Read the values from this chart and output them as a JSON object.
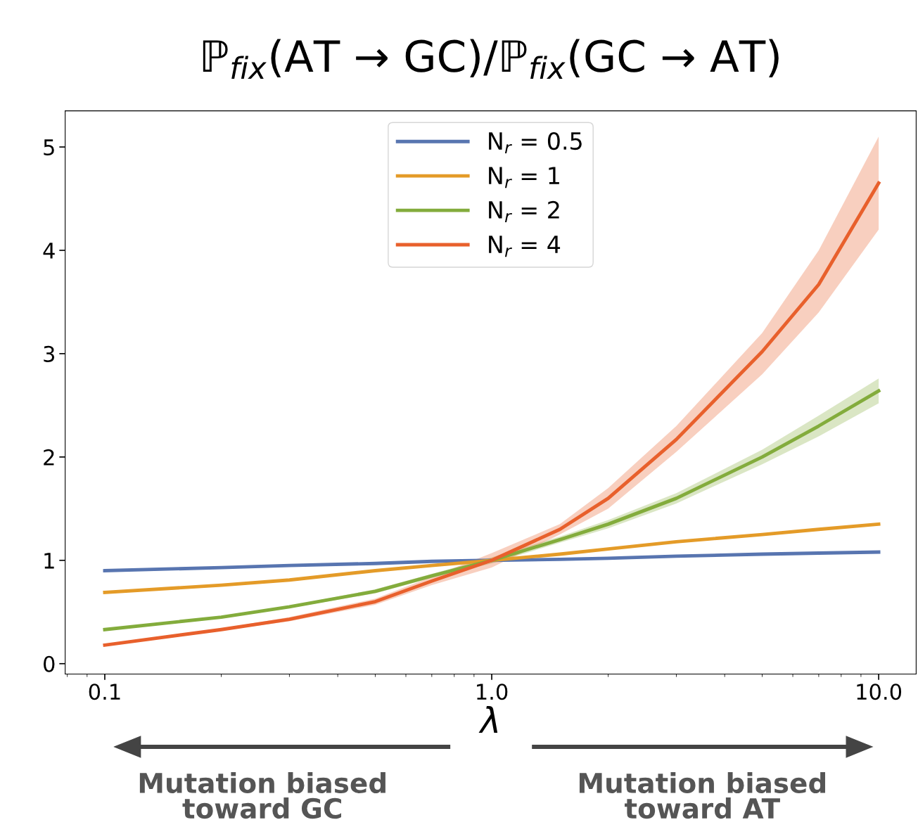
{
  "chart_data": {
    "type": "line",
    "title": "ℙ$_{fix}$(AT → GC)/ℙ$_{fix}$(GC → AT)",
    "xlabel": "λ",
    "x": [
      0.1,
      0.2,
      0.3,
      0.5,
      0.7,
      1,
      1.5,
      2,
      3,
      5,
      7,
      10
    ],
    "series": [
      {
        "name": "N$_{r}$ = 0.5",
        "color": "#5875b0",
        "values": [
          0.9,
          0.93,
          0.95,
          0.97,
          0.99,
          1,
          1.01,
          1.02,
          1.04,
          1.06,
          1.07,
          1.08
        ]
      },
      {
        "name": "N$_{r}$ = 1",
        "color": "#e49b28",
        "values": [
          0.69,
          0.76,
          0.81,
          0.9,
          0.95,
          1,
          1.06,
          1.11,
          1.18,
          1.25,
          1.3,
          1.35
        ]
      },
      {
        "name": "N$_{r}$ = 2",
        "color": "#83ac3c",
        "values": [
          0.33,
          0.45,
          0.55,
          0.7,
          0.85,
          1,
          1.2,
          1.35,
          1.6,
          2.0,
          2.3,
          2.64
        ],
        "lower": [
          0.32,
          0.44,
          0.54,
          0.68,
          0.83,
          0.97,
          1.17,
          1.31,
          1.55,
          1.93,
          2.2,
          2.52
        ],
        "upper": [
          0.34,
          0.46,
          0.56,
          0.72,
          0.87,
          1.03,
          1.23,
          1.39,
          1.65,
          2.07,
          2.4,
          2.76
        ]
      },
      {
        "name": "N$_{r}$ = 4",
        "color": "#e8602c",
        "values": [
          0.18,
          0.33,
          0.43,
          0.6,
          0.8,
          1,
          1.3,
          1.6,
          2.17,
          3.02,
          3.67,
          4.65
        ],
        "lower": [
          0.17,
          0.32,
          0.41,
          0.57,
          0.76,
          0.93,
          1.25,
          1.5,
          2.05,
          2.8,
          3.4,
          4.2
        ],
        "upper": [
          0.19,
          0.34,
          0.45,
          0.63,
          0.84,
          1.07,
          1.35,
          1.7,
          2.3,
          3.2,
          4.0,
          5.1
        ]
      }
    ],
    "log": "x",
    "xlim": [
      0.079,
      12.5
    ],
    "ylim": [
      -0.1,
      5.35
    ],
    "xticks": [
      0.1,
      {
        "value": 1,
        "label": "1.0"
      },
      {
        "value": 10,
        "label": "10.0"
      }
    ],
    "yticks": [
      0,
      1,
      2,
      3,
      4,
      5
    ],
    "grid": false,
    "legend": "top",
    "marker": "none",
    "line_style": "solid",
    "annotations": [
      "Mutation biased toward GC",
      "Mutation biased toward AT"
    ]
  }
}
